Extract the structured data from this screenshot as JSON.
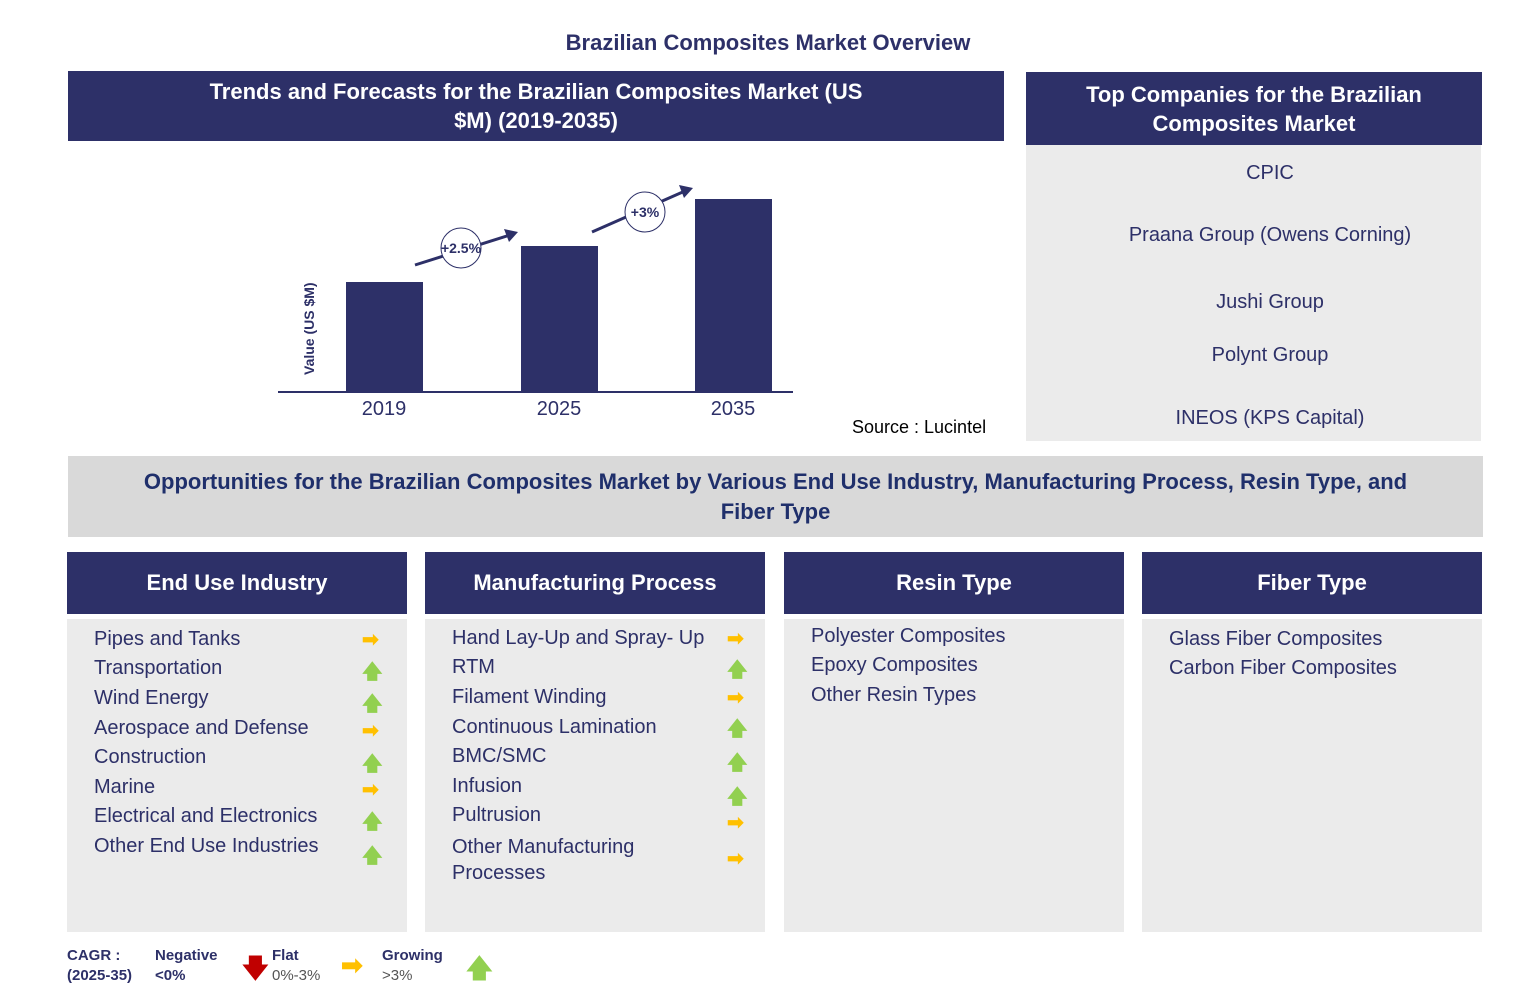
{
  "title": "Brazilian Composites Market Overview",
  "trends": {
    "header": "Trends and Forecasts for the Brazilian Composites Market (US $M) (2019-2035)",
    "source": "Source : Lucintel"
  },
  "chart_data": {
    "type": "bar",
    "categories": [
      "2019",
      "2025",
      "2035"
    ],
    "values": [
      110,
      146,
      193
    ],
    "ylabel": "Value (US $M)",
    "xlabel": "",
    "annotations": [
      {
        "label": "+2.5%",
        "between": [
          "2019",
          "2025"
        ]
      },
      {
        "label": "+3%",
        "between": [
          "2025",
          "2035"
        ]
      }
    ],
    "grid": false,
    "color": "#2d3068"
  },
  "companies": {
    "header": "Top Companies for the Brazilian Composites Market",
    "items": [
      "CPIC",
      "Praana Group (Owens Corning)",
      "Jushi Group",
      "Polynt Group",
      "INEOS (KPS Capital)"
    ]
  },
  "opportunities": {
    "header": "Opportunities for the Brazilian Composites Market by Various End Use Industry, Manufacturing Process, Resin Type, and Fiber Type"
  },
  "segments": [
    {
      "title": "End Use Industry",
      "items": [
        {
          "label": "Pipes and Tanks",
          "trend": "flat"
        },
        {
          "label": "Transportation",
          "trend": "growing"
        },
        {
          "label": "Wind Energy",
          "trend": "growing"
        },
        {
          "label": "Aerospace and Defense",
          "trend": "flat"
        },
        {
          "label": "Construction",
          "trend": "growing"
        },
        {
          "label": "Marine",
          "trend": "flat"
        },
        {
          "label": "Electrical and Electronics",
          "trend": "growing"
        },
        {
          "label": "Other End Use Industries",
          "trend": "growing"
        }
      ]
    },
    {
      "title": "Manufacturing Process",
      "items": [
        {
          "label": "Hand Lay-Up and Spray- Up",
          "trend": "flat"
        },
        {
          "label": "RTM",
          "trend": "growing"
        },
        {
          "label": "Filament Winding",
          "trend": "flat"
        },
        {
          "label": "Continuous Lamination",
          "trend": "growing"
        },
        {
          "label": "BMC/SMC",
          "trend": "growing"
        },
        {
          "label": "Infusion",
          "trend": "growing"
        },
        {
          "label": "Pultrusion",
          "trend": "flat"
        },
        {
          "label": "Other Manufacturing Processes",
          "trend": "flat"
        }
      ]
    },
    {
      "title": "Resin Type",
      "items": [
        {
          "label": "Polyester Composites"
        },
        {
          "label": "Epoxy Composites"
        },
        {
          "label": "Other Resin Types"
        }
      ]
    },
    {
      "title": "Fiber Type",
      "items": [
        {
          "label": "Glass Fiber Composites"
        },
        {
          "label": "Carbon Fiber Composites"
        }
      ]
    }
  ],
  "legend": {
    "cagr": "CAGR  :",
    "period": "(2025-35)",
    "negative": "Negative",
    "negative_range": "<0%",
    "flat": "Flat",
    "flat_range": "0%-3%",
    "growing": "Growing",
    "growing_range": ">3%"
  },
  "colors": {
    "navy": "#2d3068",
    "flat": "#ffc000",
    "growing": "#92d050",
    "negative": "#c00000"
  }
}
